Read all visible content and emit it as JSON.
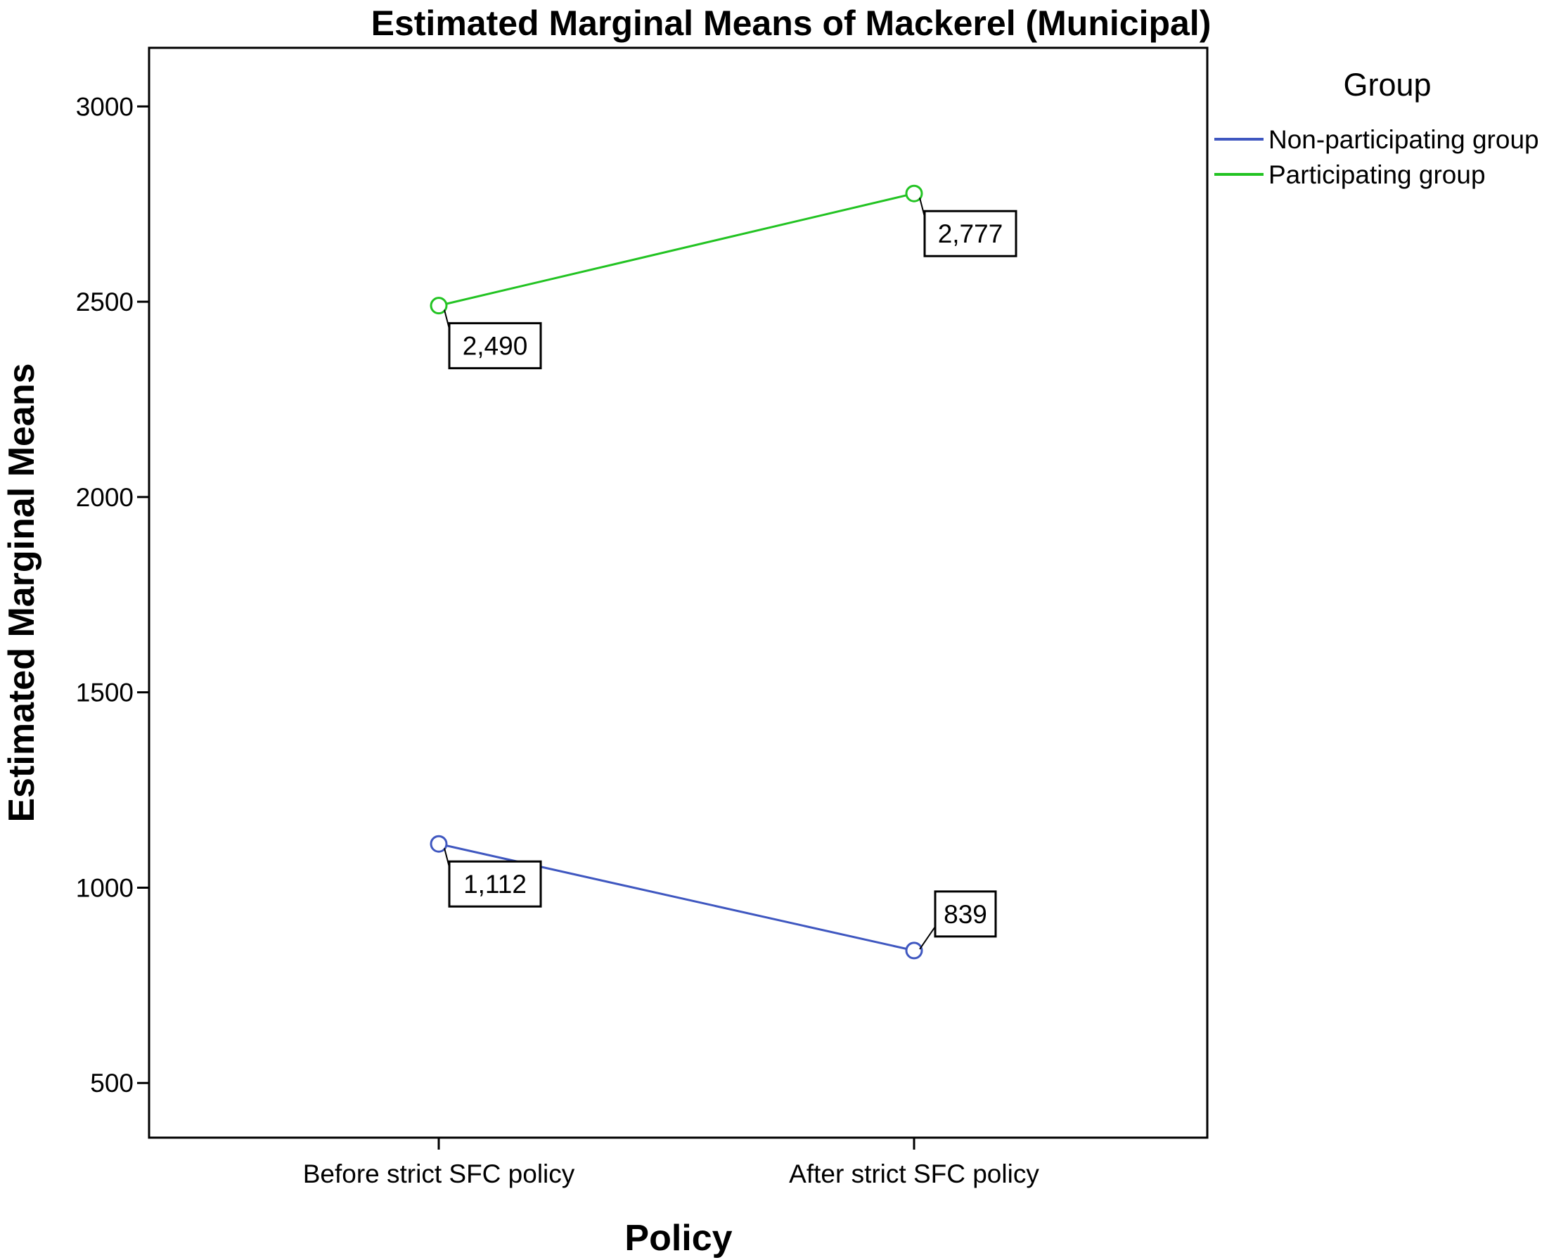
{
  "chart_data": {
    "type": "line",
    "title": "Estimated Marginal Means of Mackerel (Municipal)",
    "xlabel": "Policy",
    "ylabel": "Estimated Marginal Means",
    "categories": [
      "Before strict SFC policy",
      "After strict SFC policy"
    ],
    "ylim": [
      360,
      3150
    ],
    "yticks": [
      500,
      1000,
      1500,
      2000,
      2500,
      3000
    ],
    "grid": false,
    "legend": {
      "title": "Group",
      "placement": "right"
    },
    "series": [
      {
        "name": "Non-participating group",
        "color": "#3f57c0",
        "values": [
          1112,
          839
        ],
        "labels": [
          "1,112",
          "839"
        ]
      },
      {
        "name": "Participating group",
        "color": "#22c322",
        "values": [
          2490,
          2777
        ],
        "labels": [
          "2,490",
          "2,777"
        ]
      }
    ]
  }
}
